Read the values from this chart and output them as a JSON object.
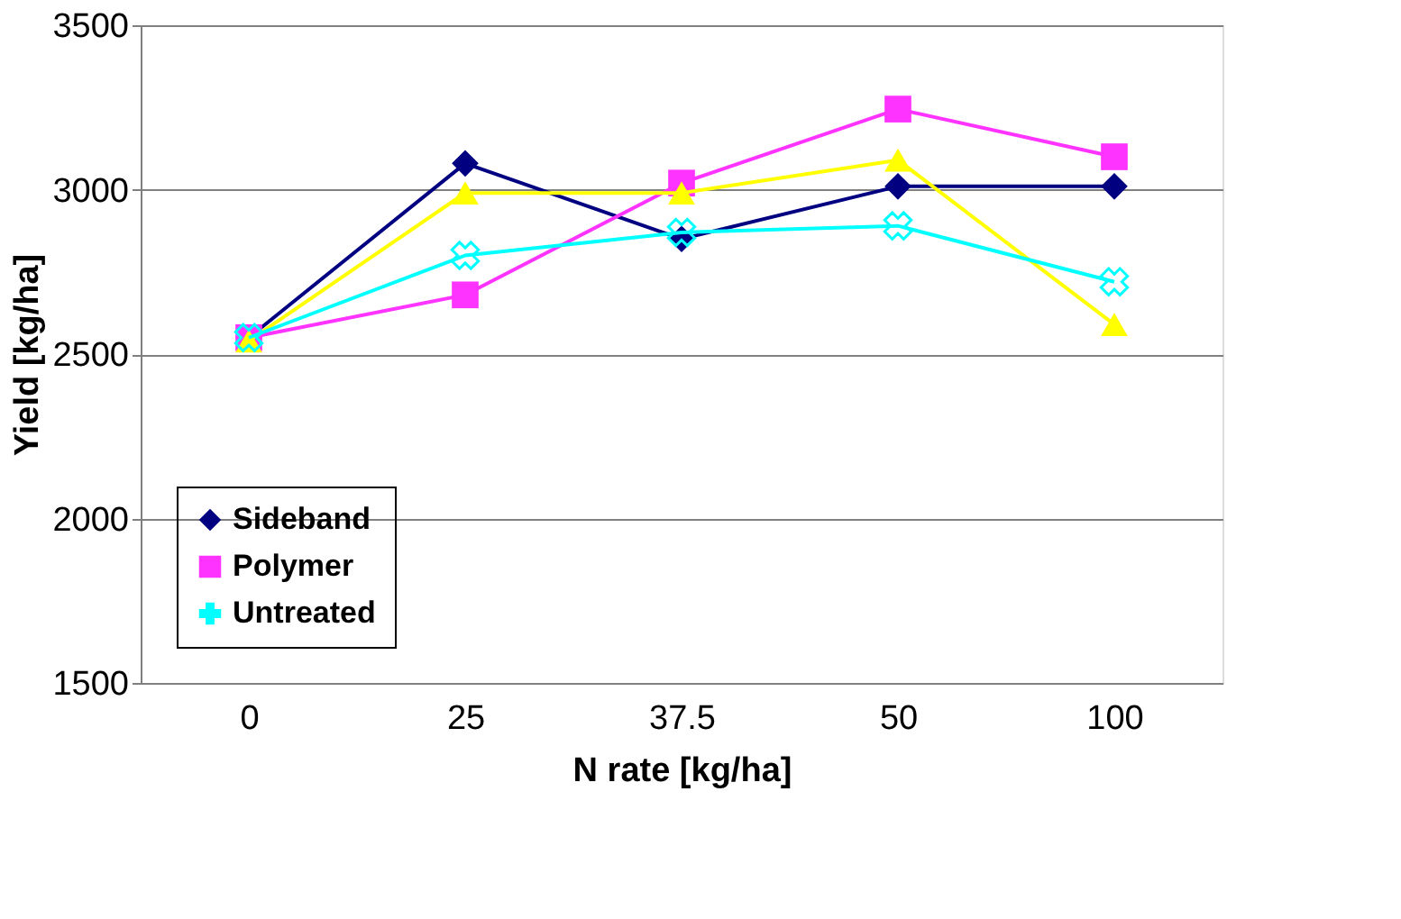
{
  "chart_data": {
    "type": "line",
    "xlabel": "N rate [kg/ha]",
    "ylabel": "Yield [kg/ha]",
    "categories": [
      "0",
      "25",
      "37.5",
      "50",
      "100"
    ],
    "ylim": [
      1500,
      3500
    ],
    "yticks": [
      1500,
      2000,
      2500,
      3000,
      3500
    ],
    "grid": "y",
    "legend": "bottom left",
    "series": [
      {
        "name": "Sideband",
        "color": "#000080",
        "marker": "diamond",
        "values": [
          2550,
          3080,
          2850,
          3010,
          3010
        ]
      },
      {
        "name": "Polymer",
        "color": "#ff33ff",
        "marker": "square",
        "values": [
          2550,
          2680,
          3020,
          3245,
          3100
        ]
      },
      {
        "color": "#ffff00",
        "marker": "triangle",
        "values": [
          2540,
          2990,
          2990,
          3090,
          2590
        ]
      },
      {
        "name": "Untreated",
        "color": "#00ffff",
        "marker": "cross",
        "values": [
          2550,
          2800,
          2870,
          2890,
          2720
        ]
      }
    ]
  }
}
